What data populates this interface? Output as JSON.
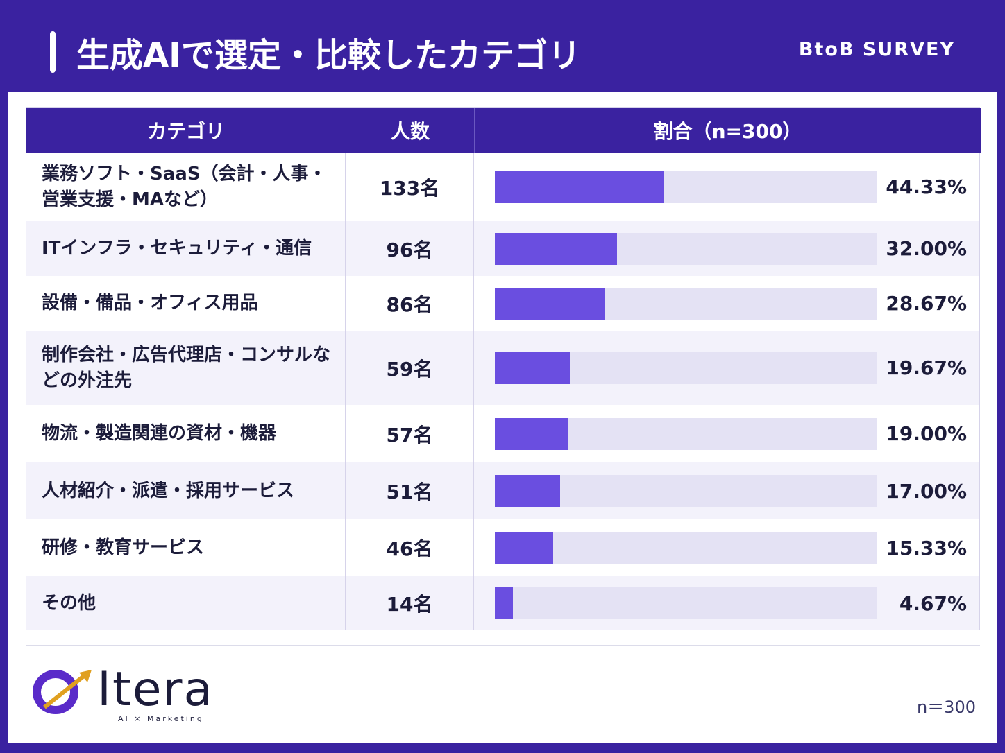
{
  "header": {
    "title": "生成AIで選定・比較したカテゴリ",
    "tag": "BtoB SURVEY"
  },
  "chart_data": {
    "type": "bar",
    "columns": [
      "カテゴリ",
      "人数",
      "割合（n=300）"
    ],
    "categories": [
      "業務ソフト・SaaS（会計・人事・営業支援・MAなど）",
      "ITインフラ・セキュリティ・通信",
      "設備・備品・オフィス用品",
      "制作会社・広告代理店・コンサルなどの外注先",
      "物流・製造関連の資材・機器",
      "人材紹介・派遣・採用サービス",
      "研修・教育サービス",
      "その他"
    ],
    "counts": [
      "133名",
      "96名",
      "86名",
      "59名",
      "57名",
      "51名",
      "46名",
      "14名"
    ],
    "values": [
      44.33,
      32.0,
      28.67,
      19.67,
      19.0,
      17.0,
      15.33,
      4.67
    ],
    "value_labels": [
      "44.33%",
      "32.00%",
      "28.67%",
      "19.67%",
      "19.00%",
      "17.00%",
      "15.33%",
      "4.67%"
    ],
    "xlim": [
      0,
      100
    ],
    "color": "#6a4ee0",
    "track_color": "#e4e2f4"
  },
  "footer": {
    "logo": "Itera",
    "logo_sub": "AI × Marketing",
    "note": "n＝300"
  }
}
